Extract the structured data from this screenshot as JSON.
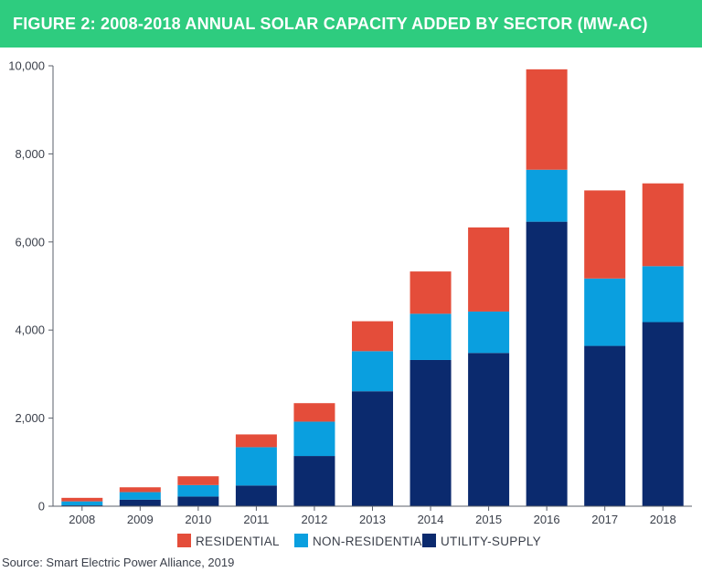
{
  "banner": {
    "title": "FIGURE 2: 2008-2018 ANNUAL SOLAR CAPACITY ADDED BY SECTOR (MW-AC)"
  },
  "source": "Source: Smart Electric Power Alliance, 2019",
  "colors": {
    "banner": "#2ecc7f",
    "residential": "#e44d3a",
    "non_residential": "#0a9fdf",
    "utility_supply": "#0b2a6e"
  },
  "chart_data": {
    "type": "bar",
    "stacked": true,
    "title": "FIGURE 2: 2008-2018 ANNUAL SOLAR CAPACITY ADDED BY SECTOR (MW-AC)",
    "xlabel": "",
    "ylabel": "",
    "ylim": [
      0,
      10000
    ],
    "yticks": [
      0,
      2000,
      4000,
      6000,
      8000,
      10000
    ],
    "ytick_labels": [
      "0",
      "2,000",
      "4,000",
      "6,000",
      "8,000",
      "10,000"
    ],
    "grid": false,
    "legend_position": "bottom",
    "categories": [
      "2008",
      "2009",
      "2010",
      "2011",
      "2012",
      "2013",
      "2014",
      "2015",
      "2016",
      "2017",
      "2018"
    ],
    "series": [
      {
        "name": "UTILITY-SUPPLY",
        "color": "#0b2a6e",
        "values": [
          20,
          150,
          220,
          470,
          1140,
          2610,
          3320,
          3480,
          6460,
          3640,
          4180
        ]
      },
      {
        "name": "NON-RESIDENTIAL",
        "color": "#0a9fdf",
        "values": [
          90,
          170,
          260,
          870,
          780,
          910,
          1050,
          940,
          1180,
          1530,
          1270
        ]
      },
      {
        "name": "RESIDENTIAL",
        "color": "#e44d3a",
        "values": [
          80,
          110,
          200,
          290,
          420,
          680,
          960,
          1910,
          2280,
          2000,
          1880
        ]
      }
    ],
    "legend": [
      "RESIDENTIAL",
      "NON-RESIDENTIAL",
      "UTILITY-SUPPLY"
    ]
  }
}
